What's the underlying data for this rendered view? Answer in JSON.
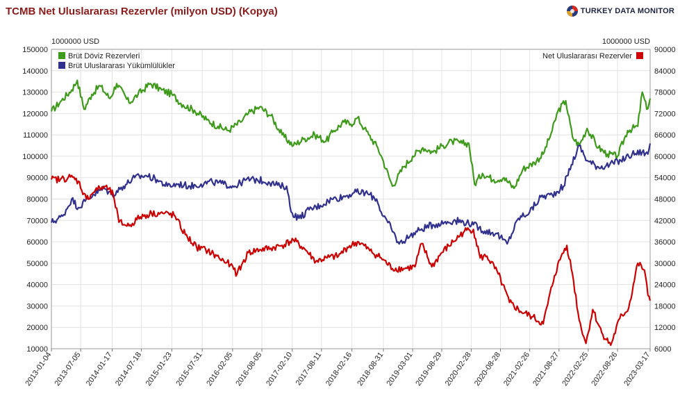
{
  "title": "TCMB Net Uluslararası Rezervler (milyon USD) (Kopya)",
  "brand": {
    "name": "TURKEY DATA MONITOR"
  },
  "colors": {
    "brut_doviz": "#3d9a1a",
    "brut_yukumluluk": "#30308f",
    "net_rezerv": "#cc0000",
    "grid": "#e2e2e2"
  },
  "chart_data": {
    "type": "line",
    "grid": true,
    "left_axis": {
      "unit_label": "1000000 USD",
      "ylim": [
        10000,
        150000
      ],
      "ticks": [
        10000,
        20000,
        30000,
        40000,
        50000,
        60000,
        70000,
        80000,
        90000,
        100000,
        110000,
        120000,
        130000,
        140000,
        150000
      ]
    },
    "right_axis": {
      "unit_label": "1000000 USD",
      "ylim": [
        6000,
        90000
      ],
      "ticks": [
        6000,
        12000,
        18000,
        24000,
        30000,
        36000,
        42000,
        48000,
        54000,
        60000,
        66000,
        72000,
        78000,
        84000,
        90000
      ]
    },
    "x_axis": {
      "xlim": [
        "2013-01-04",
        "2023-03-17"
      ],
      "tick_labels": [
        "2013-01-04",
        "2013-07-05",
        "2014-01-17",
        "2014-07-18",
        "2015-01-23",
        "2015-07-31",
        "2016-02-05",
        "2016-08-05",
        "2017-02-10",
        "2017-08-11",
        "2018-02-16",
        "2018-08-31",
        "2019-03-01",
        "2019-08-29",
        "2020-02-28",
        "2020-08-28",
        "2021-02-26",
        "2021-08-27",
        "2022-02-25",
        "2022-08-26",
        "2023-03-17"
      ]
    },
    "legend_left": {
      "position": "top-left",
      "entries": [
        "Brüt Döviz Rezervleri",
        "Brüt Uluslararası Yükümlülükler"
      ]
    },
    "legend_right": {
      "position": "top-right",
      "entries": [
        "Net Uluslararası Rezervler"
      ]
    },
    "series": [
      {
        "name": "Brüt Döviz Rezervleri",
        "axis": "left",
        "color": "#3d9a1a",
        "x": [
          "2013-01-04",
          "2013-03-01",
          "2013-05-10",
          "2013-06-14",
          "2013-07-26",
          "2013-09-13",
          "2013-11-01",
          "2014-01-03",
          "2014-02-14",
          "2014-05-02",
          "2014-06-27",
          "2014-09-12",
          "2014-11-21",
          "2015-01-23",
          "2015-04-03",
          "2015-06-12",
          "2015-08-28",
          "2015-11-06",
          "2016-01-08",
          "2016-03-25",
          "2016-05-13",
          "2016-07-22",
          "2016-09-30",
          "2016-12-09",
          "2017-02-17",
          "2017-04-21",
          "2017-06-30",
          "2017-09-08",
          "2017-10-27",
          "2017-12-29",
          "2018-02-09",
          "2018-03-23",
          "2018-05-04",
          "2018-06-01",
          "2018-07-27",
          "2018-08-24",
          "2018-10-26",
          "2019-01-04",
          "2019-03-01",
          "2019-05-03",
          "2019-07-05",
          "2019-09-06",
          "2019-11-01",
          "2020-01-03",
          "2020-02-14",
          "2020-03-20",
          "2020-05-08",
          "2020-07-17",
          "2020-09-18",
          "2020-11-20",
          "2021-01-15",
          "2021-03-26",
          "2021-05-21",
          "2021-07-16",
          "2021-08-20",
          "2021-10-08",
          "2021-11-19",
          "2021-12-31",
          "2022-02-18",
          "2022-04-29",
          "2022-06-24",
          "2022-08-26",
          "2022-10-28",
          "2022-12-30",
          "2023-01-27",
          "2023-02-24",
          "2023-03-17"
        ],
        "values": [
          121000,
          125500,
          131000,
          135500,
          122000,
          129000,
          133000,
          127000,
          134000,
          125000,
          129000,
          134000,
          131000,
          129000,
          124000,
          121500,
          117000,
          114000,
          112000,
          116000,
          120000,
          123000,
          119000,
          110000,
          105000,
          108000,
          110000,
          107000,
          112000,
          116000,
          115000,
          118000,
          113000,
          110000,
          104000,
          99000,
          86000,
          95000,
          100000,
          104000,
          102000,
          105000,
          107000,
          106000,
          106000,
          87000,
          92000,
          89000,
          90000,
          85000,
          94000,
          97000,
          101000,
          112000,
          121000,
          126000,
          109000,
          105000,
          113000,
          104000,
          101000,
          100000,
          112000,
          114000,
          130000,
          122000,
          127000
        ]
      },
      {
        "name": "Brüt Uluslararası Yükümlülükler",
        "axis": "left",
        "color": "#30308f",
        "x": [
          "2013-01-04",
          "2013-03-15",
          "2013-05-10",
          "2013-06-21",
          "2013-08-02",
          "2013-09-20",
          "2013-11-29",
          "2014-01-17",
          "2014-03-28",
          "2014-06-06",
          "2014-08-15",
          "2014-10-24",
          "2014-12-26",
          "2015-03-06",
          "2015-05-15",
          "2015-07-24",
          "2015-10-02",
          "2015-12-11",
          "2016-02-19",
          "2016-04-29",
          "2016-07-08",
          "2016-09-16",
          "2016-11-25",
          "2017-01-06",
          "2017-02-03",
          "2017-03-24",
          "2017-05-26",
          "2017-08-04",
          "2017-10-13",
          "2017-12-22",
          "2018-03-02",
          "2018-05-11",
          "2018-07-20",
          "2018-08-17",
          "2018-09-28",
          "2018-12-07",
          "2019-02-15",
          "2019-04-26",
          "2019-07-05",
          "2019-09-13",
          "2019-11-22",
          "2020-01-31",
          "2020-03-13",
          "2020-05-22",
          "2020-07-31",
          "2020-10-09",
          "2020-12-18",
          "2021-02-26",
          "2021-05-07",
          "2021-07-16",
          "2021-09-24",
          "2021-11-12",
          "2021-12-31",
          "2022-02-18",
          "2022-04-29",
          "2022-07-08",
          "2022-09-16",
          "2022-11-25",
          "2023-01-27",
          "2023-03-03",
          "2023-03-17"
        ],
        "values": [
          69000,
          72000,
          80000,
          76000,
          79000,
          82000,
          85000,
          82000,
          86000,
          90000,
          91000,
          89000,
          86000,
          87000,
          86000,
          87000,
          88000,
          87000,
          86000,
          89000,
          89000,
          88000,
          86000,
          86000,
          74000,
          71000,
          75000,
          77000,
          80000,
          81000,
          83000,
          83000,
          80000,
          74000,
          69000,
          59000,
          63000,
          66000,
          68000,
          69000,
          70000,
          69000,
          68000,
          65000,
          64000,
          59000,
          71000,
          74000,
          81000,
          82000,
          86000,
          96000,
          105000,
          98000,
          95000,
          96000,
          98000,
          101000,
          102000,
          101000,
          106000
        ]
      },
      {
        "name": "Net Uluslararası Rezervler",
        "axis": "right",
        "color": "#cc0000",
        "x": [
          "2013-01-04",
          "2013-03-01",
          "2013-05-03",
          "2013-06-21",
          "2013-08-09",
          "2013-10-04",
          "2013-12-06",
          "2014-01-24",
          "2014-02-28",
          "2014-05-02",
          "2014-07-11",
          "2014-09-19",
          "2014-11-28",
          "2015-02-06",
          "2015-04-17",
          "2015-06-26",
          "2015-09-04",
          "2015-11-13",
          "2016-01-22",
          "2016-03-04",
          "2016-05-13",
          "2016-07-22",
          "2016-09-30",
          "2016-12-09",
          "2017-02-17",
          "2017-04-28",
          "2017-07-07",
          "2017-09-15",
          "2017-11-24",
          "2018-01-19",
          "2018-03-30",
          "2018-06-08",
          "2018-08-17",
          "2018-10-26",
          "2019-01-04",
          "2019-03-15",
          "2019-04-26",
          "2019-06-28",
          "2019-08-30",
          "2019-11-08",
          "2020-01-17",
          "2020-03-13",
          "2020-04-24",
          "2020-06-05",
          "2020-08-14",
          "2020-10-23",
          "2020-12-31",
          "2021-03-12",
          "2021-05-21",
          "2021-07-30",
          "2021-09-10",
          "2021-10-15",
          "2021-11-19",
          "2021-12-31",
          "2022-02-11",
          "2022-03-25",
          "2022-05-20",
          "2022-07-15",
          "2022-09-09",
          "2022-11-04",
          "2022-12-30",
          "2023-02-10",
          "2023-03-03",
          "2023-03-17"
        ],
        "values": [
          53500,
          53500,
          54200,
          53000,
          48000,
          50500,
          51500,
          49200,
          41500,
          40500,
          43000,
          44000,
          44000,
          43500,
          38000,
          34500,
          33500,
          31500,
          29500,
          27000,
          33000,
          33800,
          34200,
          35000,
          36500,
          34000,
          30500,
          31500,
          32000,
          34500,
          36000,
          33500,
          31500,
          28500,
          28500,
          29000,
          35500,
          29000,
          33000,
          36000,
          39000,
          39500,
          31500,
          32000,
          27000,
          19000,
          16500,
          15000,
          13000,
          26500,
          32000,
          35000,
          27000,
          14000,
          7500,
          17000,
          10500,
          7000,
          14500,
          17500,
          30000,
          28000,
          21000,
          19500
        ]
      }
    ]
  }
}
